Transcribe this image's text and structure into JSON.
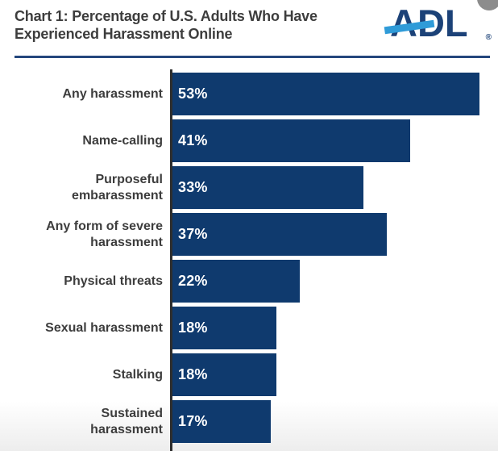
{
  "header": {
    "title_line1": "Chart 1: Percentage of U.S. Adults Who Have",
    "title_line2": "Experienced Harassment Online",
    "logo_text": "ADL",
    "logo_registered": "®",
    "logo_navy": "#1C4278",
    "logo_stripe_blue": "#2F9BD8"
  },
  "chart_data": {
    "type": "bar",
    "orientation": "horizontal",
    "title": "Chart 1: Percentage of U.S. Adults Who Have Experienced Harassment Online",
    "categories": [
      "Any harassment",
      "Name-calling",
      "Purposeful embarassment",
      "Any form of severe harassment",
      "Physical threats",
      "Sexual harassment",
      "Stalking",
      "Sustained harassment"
    ],
    "categories_display": [
      "Any harassment",
      "Name-calling",
      "Purposeful\nembarassment",
      "Any form of severe\nharassment",
      "Physical threats",
      "Sexual harassment",
      "Stalking",
      "Sustained harassment"
    ],
    "values": [
      53,
      41,
      33,
      37,
      22,
      18,
      18,
      17
    ],
    "value_labels": [
      "53%",
      "41%",
      "33%",
      "37%",
      "22%",
      "18%",
      "18%",
      "17%"
    ],
    "unit": "%",
    "xlim": [
      0,
      56.5
    ],
    "grid": false,
    "legend": false,
    "bar_color": "#0F3A6E",
    "value_label_color": "#FFFFFF",
    "category_label_color": "#3D3D3D",
    "axis_line_color": "#2E2E2E"
  }
}
